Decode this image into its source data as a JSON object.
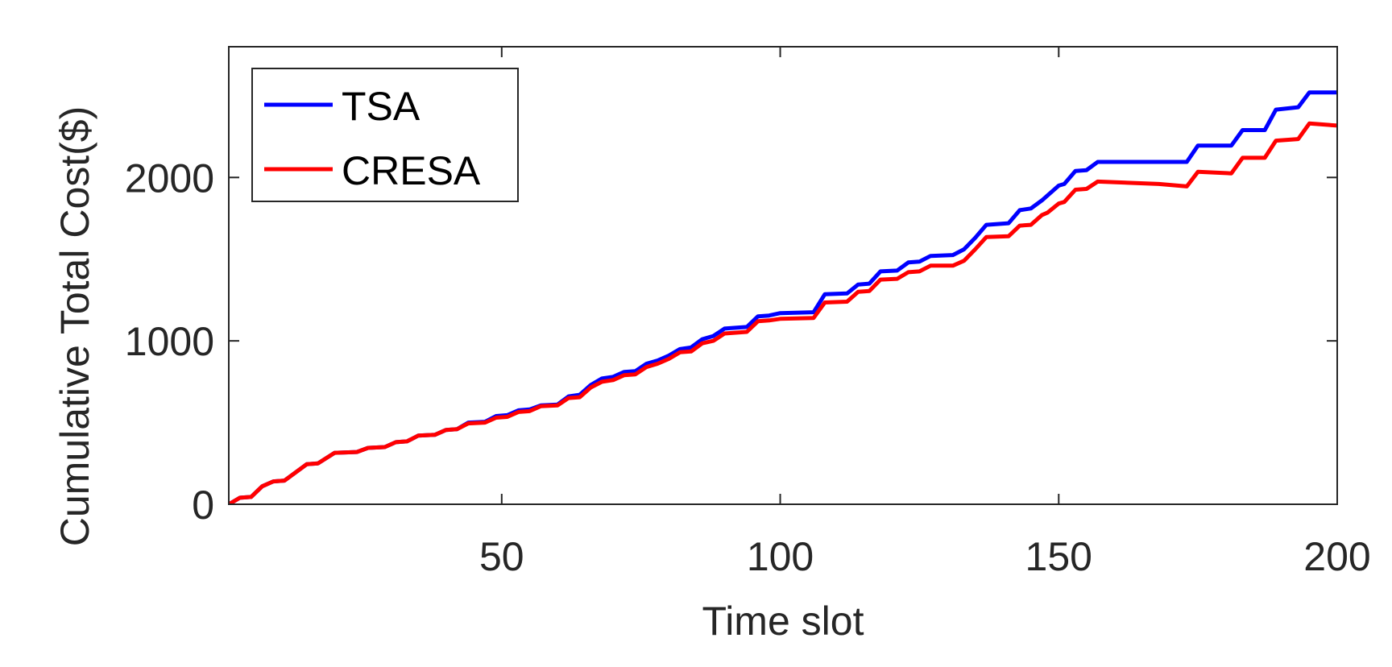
{
  "chart_data": {
    "type": "line",
    "title": "",
    "xlabel": "Time slot",
    "ylabel": "Cumulative Total Cost($)",
    "xlim": [
      1,
      200
    ],
    "ylim": [
      0,
      2800
    ],
    "xticks": [
      50,
      100,
      150,
      200
    ],
    "yticks": [
      0,
      1000,
      2000
    ],
    "grid": false,
    "legend_position": "top-left",
    "series": [
      {
        "name": "TSA",
        "color": "#0000ff",
        "points": [
          [
            1,
            0
          ],
          [
            3,
            40
          ],
          [
            5,
            45
          ],
          [
            7,
            110
          ],
          [
            9,
            140
          ],
          [
            11,
            145
          ],
          [
            15,
            245
          ],
          [
            17,
            250
          ],
          [
            20,
            315
          ],
          [
            24,
            320
          ],
          [
            26,
            345
          ],
          [
            29,
            350
          ],
          [
            31,
            380
          ],
          [
            33,
            385
          ],
          [
            35,
            420
          ],
          [
            38,
            425
          ],
          [
            40,
            455
          ],
          [
            42,
            460
          ],
          [
            44,
            500
          ],
          [
            47,
            505
          ],
          [
            49,
            540
          ],
          [
            51,
            545
          ],
          [
            53,
            575
          ],
          [
            55,
            580
          ],
          [
            57,
            605
          ],
          [
            60,
            610
          ],
          [
            62,
            660
          ],
          [
            64,
            670
          ],
          [
            66,
            730
          ],
          [
            68,
            770
          ],
          [
            70,
            780
          ],
          [
            72,
            810
          ],
          [
            74,
            815
          ],
          [
            76,
            860
          ],
          [
            78,
            880
          ],
          [
            80,
            910
          ],
          [
            82,
            950
          ],
          [
            84,
            960
          ],
          [
            86,
            1010
          ],
          [
            88,
            1030
          ],
          [
            90,
            1075
          ],
          [
            92,
            1080
          ],
          [
            94,
            1085
          ],
          [
            96,
            1150
          ],
          [
            98,
            1155
          ],
          [
            100,
            1170
          ],
          [
            106,
            1175
          ],
          [
            108,
            1285
          ],
          [
            112,
            1290
          ],
          [
            114,
            1345
          ],
          [
            116,
            1350
          ],
          [
            118,
            1425
          ],
          [
            121,
            1430
          ],
          [
            123,
            1480
          ],
          [
            125,
            1485
          ],
          [
            127,
            1520
          ],
          [
            131,
            1525
          ],
          [
            133,
            1560
          ],
          [
            135,
            1630
          ],
          [
            137,
            1710
          ],
          [
            141,
            1720
          ],
          [
            143,
            1800
          ],
          [
            145,
            1810
          ],
          [
            147,
            1860
          ],
          [
            148,
            1890
          ],
          [
            150,
            1950
          ],
          [
            151,
            1960
          ],
          [
            153,
            2040
          ],
          [
            155,
            2045
          ],
          [
            157,
            2095
          ],
          [
            168,
            2095
          ],
          [
            173,
            2095
          ],
          [
            175,
            2195
          ],
          [
            181,
            2195
          ],
          [
            183,
            2290
          ],
          [
            187,
            2290
          ],
          [
            189,
            2415
          ],
          [
            193,
            2430
          ],
          [
            195,
            2520
          ],
          [
            201,
            2520
          ],
          [
            202,
            2580
          ],
          [
            203,
            2585
          ]
        ]
      },
      {
        "name": "CRESA",
        "color": "#ff0000",
        "points": [
          [
            1,
            0
          ],
          [
            3,
            40
          ],
          [
            5,
            45
          ],
          [
            7,
            110
          ],
          [
            9,
            140
          ],
          [
            11,
            145
          ],
          [
            15,
            245
          ],
          [
            17,
            250
          ],
          [
            20,
            315
          ],
          [
            24,
            320
          ],
          [
            26,
            345
          ],
          [
            29,
            350
          ],
          [
            31,
            380
          ],
          [
            33,
            385
          ],
          [
            35,
            420
          ],
          [
            38,
            425
          ],
          [
            40,
            455
          ],
          [
            42,
            460
          ],
          [
            44,
            495
          ],
          [
            47,
            500
          ],
          [
            49,
            530
          ],
          [
            51,
            535
          ],
          [
            53,
            565
          ],
          [
            55,
            570
          ],
          [
            57,
            600
          ],
          [
            60,
            605
          ],
          [
            62,
            650
          ],
          [
            64,
            655
          ],
          [
            66,
            715
          ],
          [
            68,
            750
          ],
          [
            70,
            760
          ],
          [
            72,
            790
          ],
          [
            74,
            795
          ],
          [
            76,
            840
          ],
          [
            78,
            860
          ],
          [
            80,
            890
          ],
          [
            82,
            930
          ],
          [
            84,
            935
          ],
          [
            86,
            985
          ],
          [
            88,
            1000
          ],
          [
            90,
            1045
          ],
          [
            92,
            1050
          ],
          [
            94,
            1055
          ],
          [
            96,
            1120
          ],
          [
            98,
            1125
          ],
          [
            100,
            1135
          ],
          [
            106,
            1140
          ],
          [
            108,
            1235
          ],
          [
            112,
            1240
          ],
          [
            114,
            1300
          ],
          [
            116,
            1305
          ],
          [
            118,
            1375
          ],
          [
            121,
            1380
          ],
          [
            123,
            1420
          ],
          [
            125,
            1425
          ],
          [
            127,
            1460
          ],
          [
            131,
            1460
          ],
          [
            133,
            1490
          ],
          [
            135,
            1560
          ],
          [
            137,
            1635
          ],
          [
            141,
            1640
          ],
          [
            143,
            1705
          ],
          [
            145,
            1710
          ],
          [
            147,
            1770
          ],
          [
            148,
            1785
          ],
          [
            150,
            1840
          ],
          [
            151,
            1850
          ],
          [
            153,
            1925
          ],
          [
            155,
            1930
          ],
          [
            157,
            1975
          ],
          [
            168,
            1960
          ],
          [
            173,
            1945
          ],
          [
            175,
            2035
          ],
          [
            181,
            2025
          ],
          [
            183,
            2120
          ],
          [
            187,
            2120
          ],
          [
            189,
            2225
          ],
          [
            193,
            2235
          ],
          [
            195,
            2330
          ],
          [
            201,
            2315
          ],
          [
            202,
            2345
          ],
          [
            203,
            2370
          ]
        ]
      }
    ]
  }
}
